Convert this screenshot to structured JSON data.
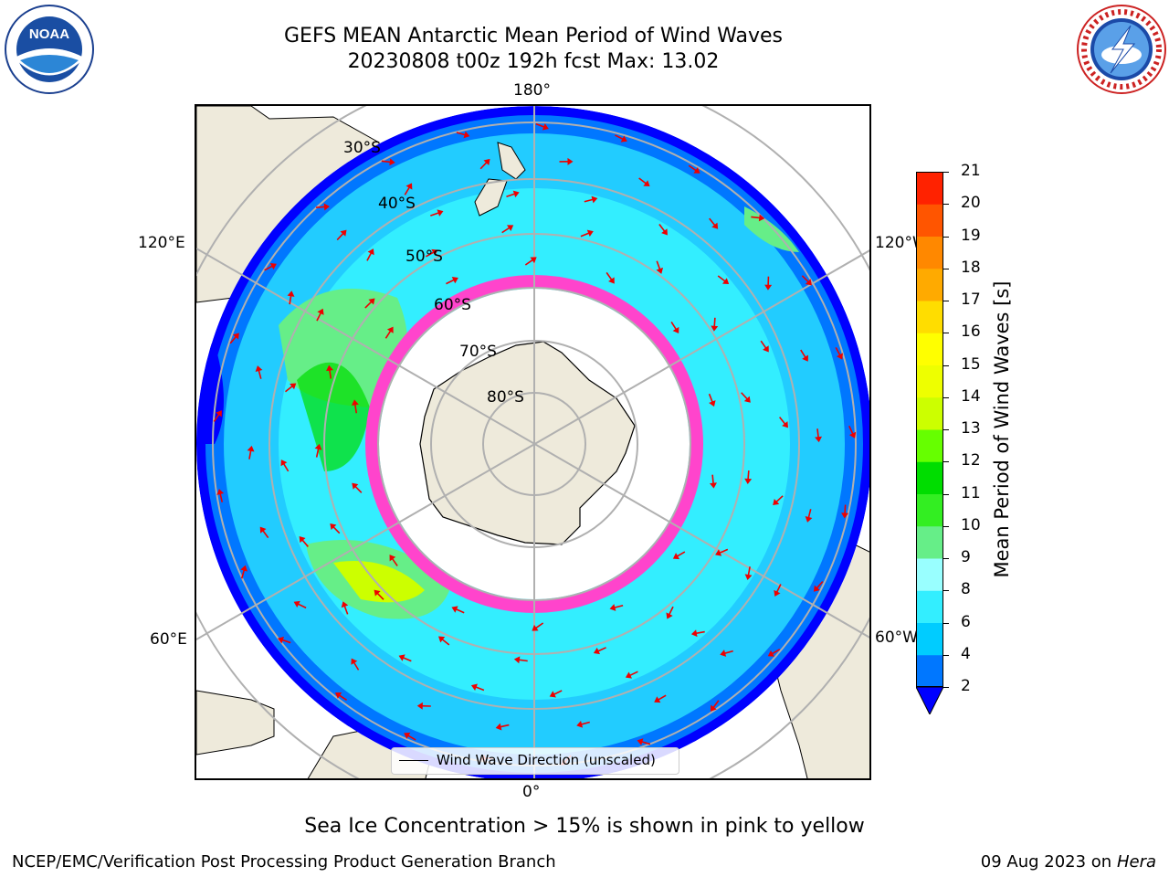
{
  "header": {
    "title_line1": "GEFS MEAN Antarctic Mean Period of Wind Waves",
    "title_line2": "20230808 t00z 192h fcst   Max: 13.02"
  },
  "logos": {
    "left_text": "NOAA",
    "left_ring": "NATIONAL OCEANIC AND ATMOSPHERIC ADMINISTRATION · U.S. DEPARTMENT OF COMMERCE",
    "right_ring": "NATIONAL WEATHER SERVICE"
  },
  "map": {
    "longitude_labels": [
      "180°",
      "120°E",
      "120°W",
      "60°E",
      "60°W",
      "0°"
    ],
    "latitude_labels": [
      "30°S",
      "40°S",
      "50°S",
      "60°S",
      "70°S",
      "80°S"
    ],
    "legend_label": "Wind Wave Direction (unscaled)",
    "colors": {
      "land": "#eeeadb",
      "grid": "#b0b0b0",
      "arrow": "#ee0000",
      "sea_ice": "#ff44cc"
    }
  },
  "colorbar": {
    "label": "Mean Period of Wind Waves [s]",
    "ticks": [
      "2",
      "4",
      "6",
      "8",
      "9",
      "10",
      "11",
      "12",
      "13",
      "14",
      "15",
      "16",
      "17",
      "18",
      "19",
      "20",
      "21"
    ],
    "colors": [
      "#0000ff",
      "#0077ff",
      "#00ccff",
      "#33eeff",
      "#99ffff",
      "#66ee88",
      "#33ee22",
      "#00dd00",
      "#66ff00",
      "#ccff00",
      "#eeff00",
      "#ffff00",
      "#ffdd00",
      "#ffaa00",
      "#ff8800",
      "#ff5500",
      "#ff2200",
      "#ff0000"
    ]
  },
  "footer": {
    "note": "Sea Ice Concentration > 15% is shown in pink to yellow",
    "credit_left": "NCEP/EMC/Verification Post Processing Product Generation Branch",
    "credit_right_prefix": "09 Aug 2023 on",
    "credit_right_host": "Hera"
  }
}
